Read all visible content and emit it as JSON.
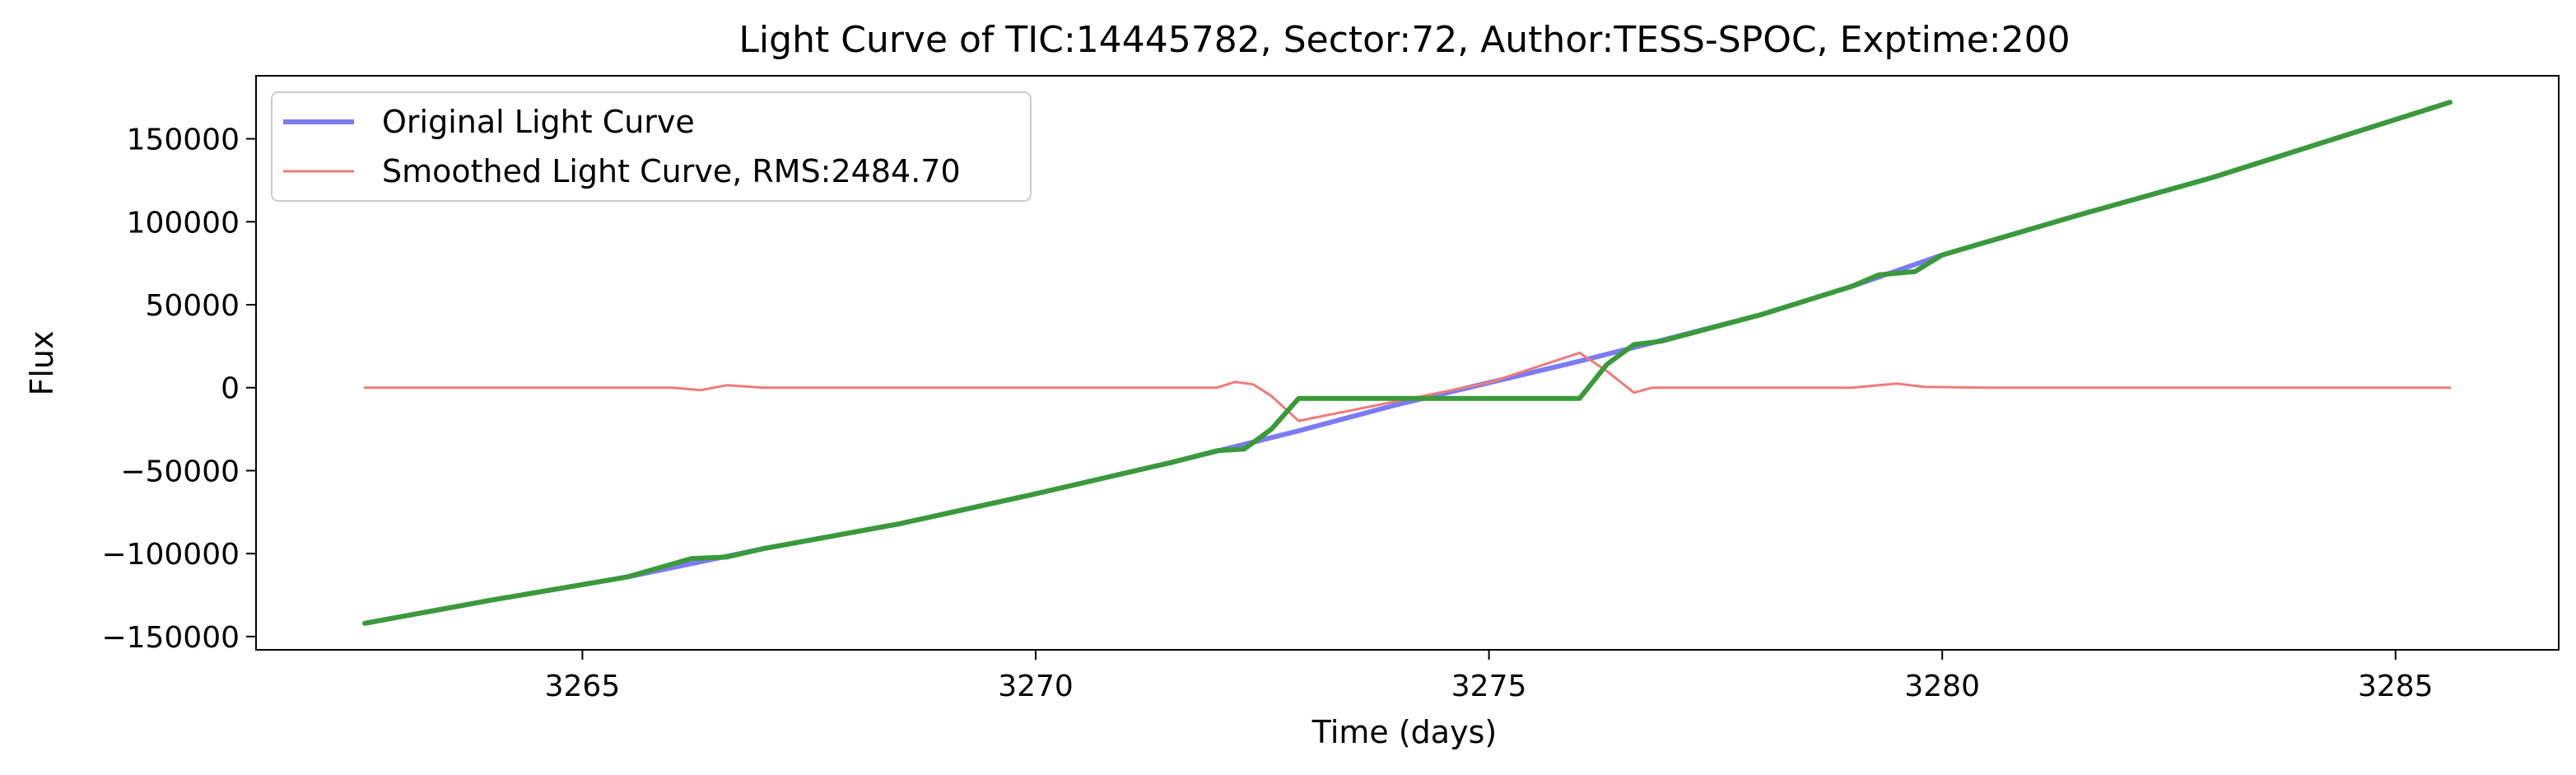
{
  "chart_data": {
    "type": "line",
    "title": "Light Curve of TIC:14445782, Sector:72, Author:TESS-SPOC, Exptime:200",
    "xlabel": "Time (days)",
    "ylabel": "Flux",
    "xlim": [
      3261.4,
      3286.8
    ],
    "ylim": [
      -158000,
      188000
    ],
    "x_ticks": [
      3265,
      3270,
      3275,
      3280,
      3285
    ],
    "y_ticks": [
      -150000,
      -100000,
      -50000,
      0,
      50000,
      100000,
      150000
    ],
    "x_tick_labels": [
      "3265",
      "3270",
      "3275",
      "3280",
      "3285"
    ],
    "y_tick_labels": [
      "−150000",
      "−100000",
      "−50000",
      "0",
      "50000",
      "100000",
      "150000"
    ],
    "grid": false,
    "legend_placement": "upper-left",
    "series": [
      {
        "name": "Original Light Curve",
        "color": "#7b7bf3",
        "x": [
          3262.6,
          3264,
          3265.5,
          3267,
          3268.5,
          3270,
          3271.5,
          3272.9,
          3274,
          3275,
          3276,
          3276.8,
          3278,
          3279,
          3280,
          3281.5,
          3283,
          3284.5,
          3285.6
        ],
        "y": [
          -142000,
          -128000,
          -114000,
          -97000,
          -82000,
          -64000,
          -45000,
          -26000,
          -10000,
          3000,
          16000,
          27000,
          44000,
          61000,
          80000,
          104000,
          127000,
          153000,
          172000
        ]
      },
      {
        "name": "Smoothed Light Curve, RMS:2484.70",
        "color": "#ee7b7b",
        "x": [
          3262.6,
          3264,
          3266,
          3266.3,
          3266.6,
          3267,
          3268,
          3270,
          3272,
          3272.2,
          3272.4,
          3272.6,
          3272.9,
          3274,
          3275,
          3276,
          3276.3,
          3276.6,
          3276.8,
          3277.5,
          3279,
          3279.5,
          3279.8,
          3280.5,
          3282,
          3284,
          3285.6
        ],
        "y": [
          0,
          0,
          0,
          -1500,
          1500,
          0,
          0,
          0,
          0,
          3500,
          2000,
          -5000,
          -20000,
          -8000,
          3000,
          21000,
          10000,
          -3000,
          0,
          0,
          0,
          2500,
          500,
          0,
          0,
          0,
          0
        ]
      },
      {
        "name": "",
        "color": "#3a9a3a",
        "x": [
          3262.6,
          3264,
          3265.5,
          3266.2,
          3266.6,
          3267,
          3268.5,
          3270,
          3271.5,
          3272,
          3272.3,
          3272.6,
          3272.9,
          3274,
          3275,
          3276,
          3276.3,
          3276.6,
          3276.9,
          3278,
          3279,
          3279.3,
          3279.7,
          3280,
          3281.5,
          3283,
          3284.5,
          3285.6
        ],
        "y": [
          -142000,
          -128000,
          -114000,
          -103000,
          -102000,
          -97000,
          -82000,
          -64000,
          -45000,
          -38000,
          -37000,
          -25000,
          -6500,
          -6500,
          -6500,
          -6500,
          14000,
          26000,
          28000,
          44000,
          61000,
          68000,
          70000,
          80000,
          104000,
          127000,
          153000,
          172000
        ]
      }
    ]
  }
}
